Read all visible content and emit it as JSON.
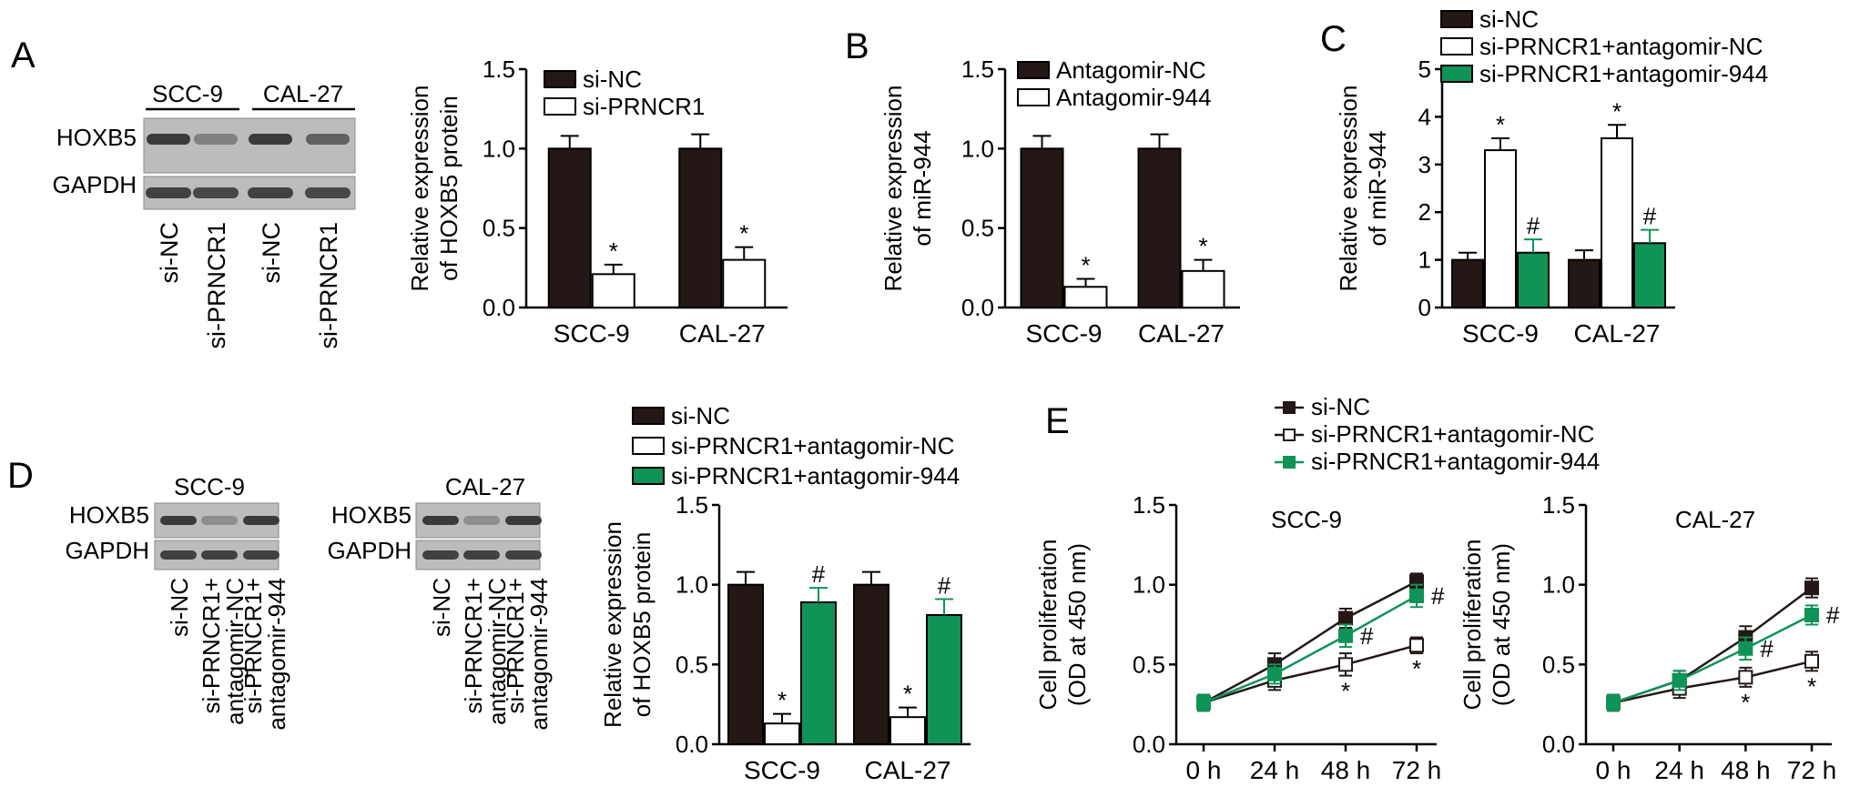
{
  "colors": {
    "dark": "#231816",
    "green": "#109357",
    "white": "#ffffff",
    "black": "#000000",
    "blot": "#3a3a3a",
    "blotbg": "#bcbcbc"
  },
  "panels": [
    {
      "letter": "A",
      "blot": {
        "groups": [
          "SCC-9",
          "CAL-27"
        ],
        "rows": [
          "HOXB5",
          "GAPDH"
        ],
        "lanes": [
          "si-NC",
          "si-PRNCR1",
          "si-NC",
          "si-PRNCR1"
        ]
      },
      "chart_data": {
        "type": "bar",
        "ylabel": [
          "Relative expression",
          "of HOXB5 protein"
        ],
        "ylim": [
          0,
          1.5
        ],
        "yticks": [
          "0.0",
          "0.5",
          "1.0",
          "1.5"
        ],
        "categories": [
          "SCC-9",
          "CAL-27"
        ],
        "legend": "top-right",
        "series": [
          {
            "name": "si-NC",
            "color": "dark",
            "values": [
              1.0,
              1.0
            ],
            "err": [
              0.08,
              0.09
            ],
            "marks": [
              "",
              ""
            ]
          },
          {
            "name": "si-PRNCR1",
            "color": "white",
            "values": [
              0.21,
              0.3
            ],
            "err": [
              0.06,
              0.08
            ],
            "marks": [
              "*",
              "*"
            ]
          }
        ]
      }
    },
    {
      "letter": "B",
      "chart_data": {
        "type": "bar",
        "ylabel": [
          "Relative expression",
          "of miR-944"
        ],
        "ylim": [
          0,
          1.5
        ],
        "yticks": [
          "0.0",
          "0.5",
          "1.0",
          "1.5"
        ],
        "categories": [
          "SCC-9",
          "CAL-27"
        ],
        "legend": "top",
        "series": [
          {
            "name": "Antagomir-NC",
            "color": "dark",
            "values": [
              1.0,
              1.0
            ],
            "err": [
              0.08,
              0.09
            ],
            "marks": [
              "",
              ""
            ]
          },
          {
            "name": "Antagomir-944",
            "color": "white",
            "values": [
              0.13,
              0.23
            ],
            "err": [
              0.05,
              0.07
            ],
            "marks": [
              "*",
              "*"
            ]
          }
        ]
      }
    },
    {
      "letter": "C",
      "chart_data": {
        "type": "bar",
        "ylabel": [
          "Relative expression",
          "of miR-944"
        ],
        "ylim": [
          0,
          5
        ],
        "yticks": [
          "0",
          "1",
          "2",
          "3",
          "4",
          "5"
        ],
        "categories": [
          "SCC-9",
          "CAL-27"
        ],
        "legend": "top",
        "series": [
          {
            "name": "si-NC",
            "color": "dark",
            "values": [
              1.0,
              1.0
            ],
            "err": [
              0.15,
              0.2
            ],
            "marks": [
              "",
              ""
            ]
          },
          {
            "name": "si-PRNCR1+antagomir-NC",
            "color": "white",
            "values": [
              3.3,
              3.55
            ],
            "err": [
              0.25,
              0.28
            ],
            "marks": [
              "*",
              "*"
            ]
          },
          {
            "name": "si-PRNCR1+antagomir-944",
            "color": "green",
            "values": [
              1.15,
              1.35
            ],
            "err": [
              0.28,
              0.28
            ],
            "marks": [
              "#",
              "#"
            ]
          }
        ]
      }
    },
    {
      "letter": "D",
      "blots": [
        {
          "title": "SCC-9",
          "rows": [
            "HOXB5",
            "GAPDH"
          ],
          "lanes": [
            "si-NC",
            "si-PRNCR1+ antagomir-NC",
            "si-PRNCR1+ antagomir-944"
          ]
        },
        {
          "title": "CAL-27",
          "rows": [
            "HOXB5",
            "GAPDH"
          ],
          "lanes": [
            "si-NC",
            "si-PRNCR1+ antagomir-NC",
            "si-PRNCR1+ antagomir-944"
          ]
        }
      ],
      "chart_data": {
        "type": "bar",
        "ylabel": [
          "Relative expression",
          "of HOXB5 protein"
        ],
        "ylim": [
          0,
          1.5
        ],
        "yticks": [
          "0.0",
          "0.5",
          "1.0",
          "1.5"
        ],
        "categories": [
          "SCC-9",
          "CAL-27"
        ],
        "legend": "top",
        "series": [
          {
            "name": "si-NC",
            "color": "dark",
            "values": [
              1.0,
              1.0
            ],
            "err": [
              0.08,
              0.08
            ],
            "marks": [
              "",
              ""
            ]
          },
          {
            "name": "si-PRNCR1+antagomir-NC",
            "color": "white",
            "values": [
              0.13,
              0.17
            ],
            "err": [
              0.06,
              0.06
            ],
            "marks": [
              "*",
              "*"
            ]
          },
          {
            "name": "si-PRNCR1+antagomir-944",
            "color": "green",
            "values": [
              0.89,
              0.81
            ],
            "err": [
              0.09,
              0.1
            ],
            "marks": [
              "#",
              "#"
            ]
          }
        ]
      }
    },
    {
      "letter": "E",
      "legend": [
        {
          "name": "si-NC",
          "color": "dark",
          "marker": "filled"
        },
        {
          "name": "si-PRNCR1+antagomir-NC",
          "color": "dark",
          "marker": "open"
        },
        {
          "name": "si-PRNCR1+antagomir-944",
          "color": "green",
          "marker": "filled"
        }
      ],
      "chart_data": [
        {
          "type": "line",
          "title": "SCC-9",
          "x": [
            "0 h",
            "24 h",
            "48 h",
            "72 h"
          ],
          "ylabel": [
            "Cell proliferation",
            "(OD at 450 nm)"
          ],
          "ylim": [
            0,
            1.5
          ],
          "yticks": [
            "0.0",
            "0.5",
            "1.0",
            "1.5"
          ],
          "series": [
            {
              "name": "si-NC",
              "values": [
                0.26,
                0.5,
                0.79,
                1.02
              ],
              "err": [
                0.05,
                0.07,
                0.06,
                0.05
              ],
              "marks": [
                "",
                "",
                "",
                ""
              ]
            },
            {
              "name": "si-PRNCR1+antagomir-NC",
              "values": [
                0.26,
                0.4,
                0.5,
                0.62
              ],
              "err": [
                0.05,
                0.06,
                0.07,
                0.05
              ],
              "marks": [
                "",
                "",
                "*",
                "*"
              ]
            },
            {
              "name": "si-PRNCR1+antagomir-944",
              "values": [
                0.26,
                0.44,
                0.68,
                0.93
              ],
              "err": [
                0.05,
                0.06,
                0.07,
                0.07
              ],
              "marks": [
                "",
                "",
                "#",
                "#"
              ]
            }
          ]
        },
        {
          "type": "line",
          "title": "CAL-27",
          "x": [
            "0 h",
            "24 h",
            "48 h",
            "72 h"
          ],
          "ylabel": [
            "Cell proliferation",
            "(OD at 450 nm)"
          ],
          "ylim": [
            0,
            1.5
          ],
          "yticks": [
            "0.0",
            "0.5",
            "1.0",
            "1.5"
          ],
          "series": [
            {
              "name": "si-NC",
              "values": [
                0.26,
                0.4,
                0.67,
                0.98
              ],
              "err": [
                0.05,
                0.06,
                0.07,
                0.06
              ],
              "marks": [
                "",
                "",
                "",
                ""
              ]
            },
            {
              "name": "si-PRNCR1+antagomir-NC",
              "values": [
                0.26,
                0.35,
                0.42,
                0.52
              ],
              "err": [
                0.05,
                0.06,
                0.06,
                0.06
              ],
              "marks": [
                "",
                "",
                "*",
                "*"
              ]
            },
            {
              "name": "si-PRNCR1+antagomir-944",
              "values": [
                0.26,
                0.4,
                0.6,
                0.81
              ],
              "err": [
                0.05,
                0.06,
                0.07,
                0.06
              ],
              "marks": [
                "",
                "",
                "#",
                "#"
              ]
            }
          ]
        }
      ]
    }
  ]
}
